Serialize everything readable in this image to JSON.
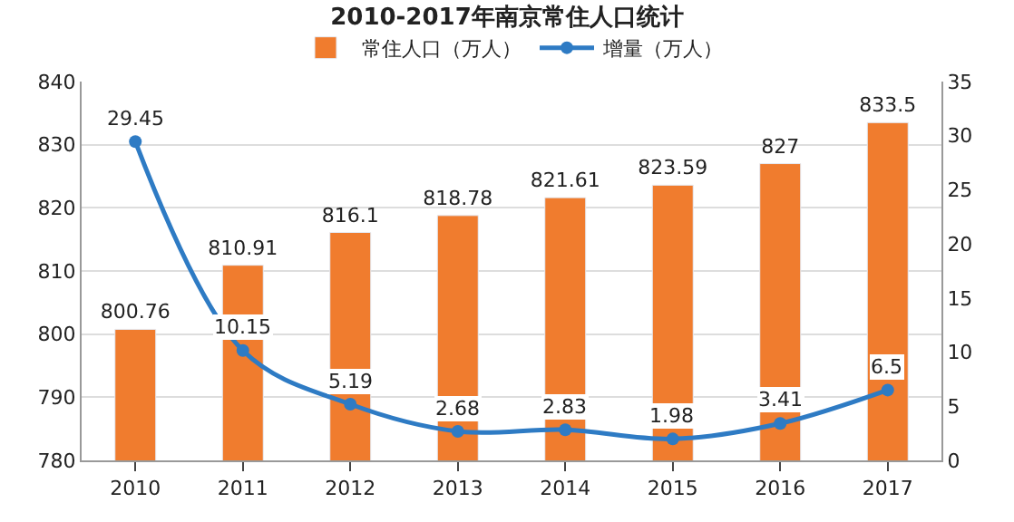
{
  "chart_data": {
    "type": "bar",
    "title": "2010-2017年南京常住人口统计",
    "categories": [
      "2010",
      "2011",
      "2012",
      "2013",
      "2014",
      "2015",
      "2016",
      "2017"
    ],
    "series": [
      {
        "name": "常住人口（万人）",
        "color": "#f07c2e",
        "values": [
          800.76,
          810.91,
          816.1,
          818.78,
          821.61,
          823.59,
          827,
          833.5
        ]
      },
      {
        "name": "增量（万人）",
        "type": "line",
        "axis": "y2",
        "color": "#2e7bc4",
        "values": [
          29.45,
          10.15,
          5.19,
          2.68,
          2.83,
          1.98,
          3.41,
          6.5
        ]
      }
    ],
    "ylim": [
      780,
      840
    ],
    "yticks": [
      780,
      790,
      800,
      810,
      820,
      830,
      840
    ],
    "y2lim": [
      0,
      35
    ],
    "y2ticks": [
      0,
      5,
      10,
      15,
      20,
      25,
      30,
      35
    ],
    "grid": "y",
    "legend": "top",
    "marker": "circle",
    "data_labels": true
  }
}
